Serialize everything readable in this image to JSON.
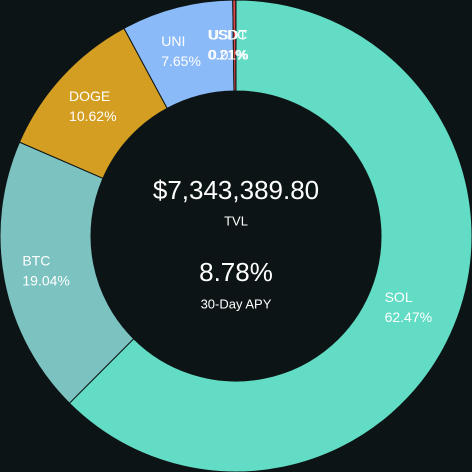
{
  "chart_data": {
    "type": "donut",
    "categories": [
      "SOL",
      "BTC",
      "DOGE",
      "UNI",
      "USDC",
      "USDT"
    ],
    "values": [
      62.47,
      19.04,
      10.62,
      7.65,
      0.21,
      0.01
    ],
    "value_labels": [
      "62.47%",
      "19.04%",
      "10.62%",
      "7.65%",
      "0.21%",
      "0.01%"
    ],
    "colors": [
      "#62dcc4",
      "#7cc2c0",
      "#d49e22",
      "#8bbaf8",
      "#e04848",
      "#f0f0f0"
    ],
    "center_value": "$7,343,389.80",
    "center_label": "TVL",
    "apy_value": "8.78%",
    "apy_label": "30-Day APY"
  }
}
